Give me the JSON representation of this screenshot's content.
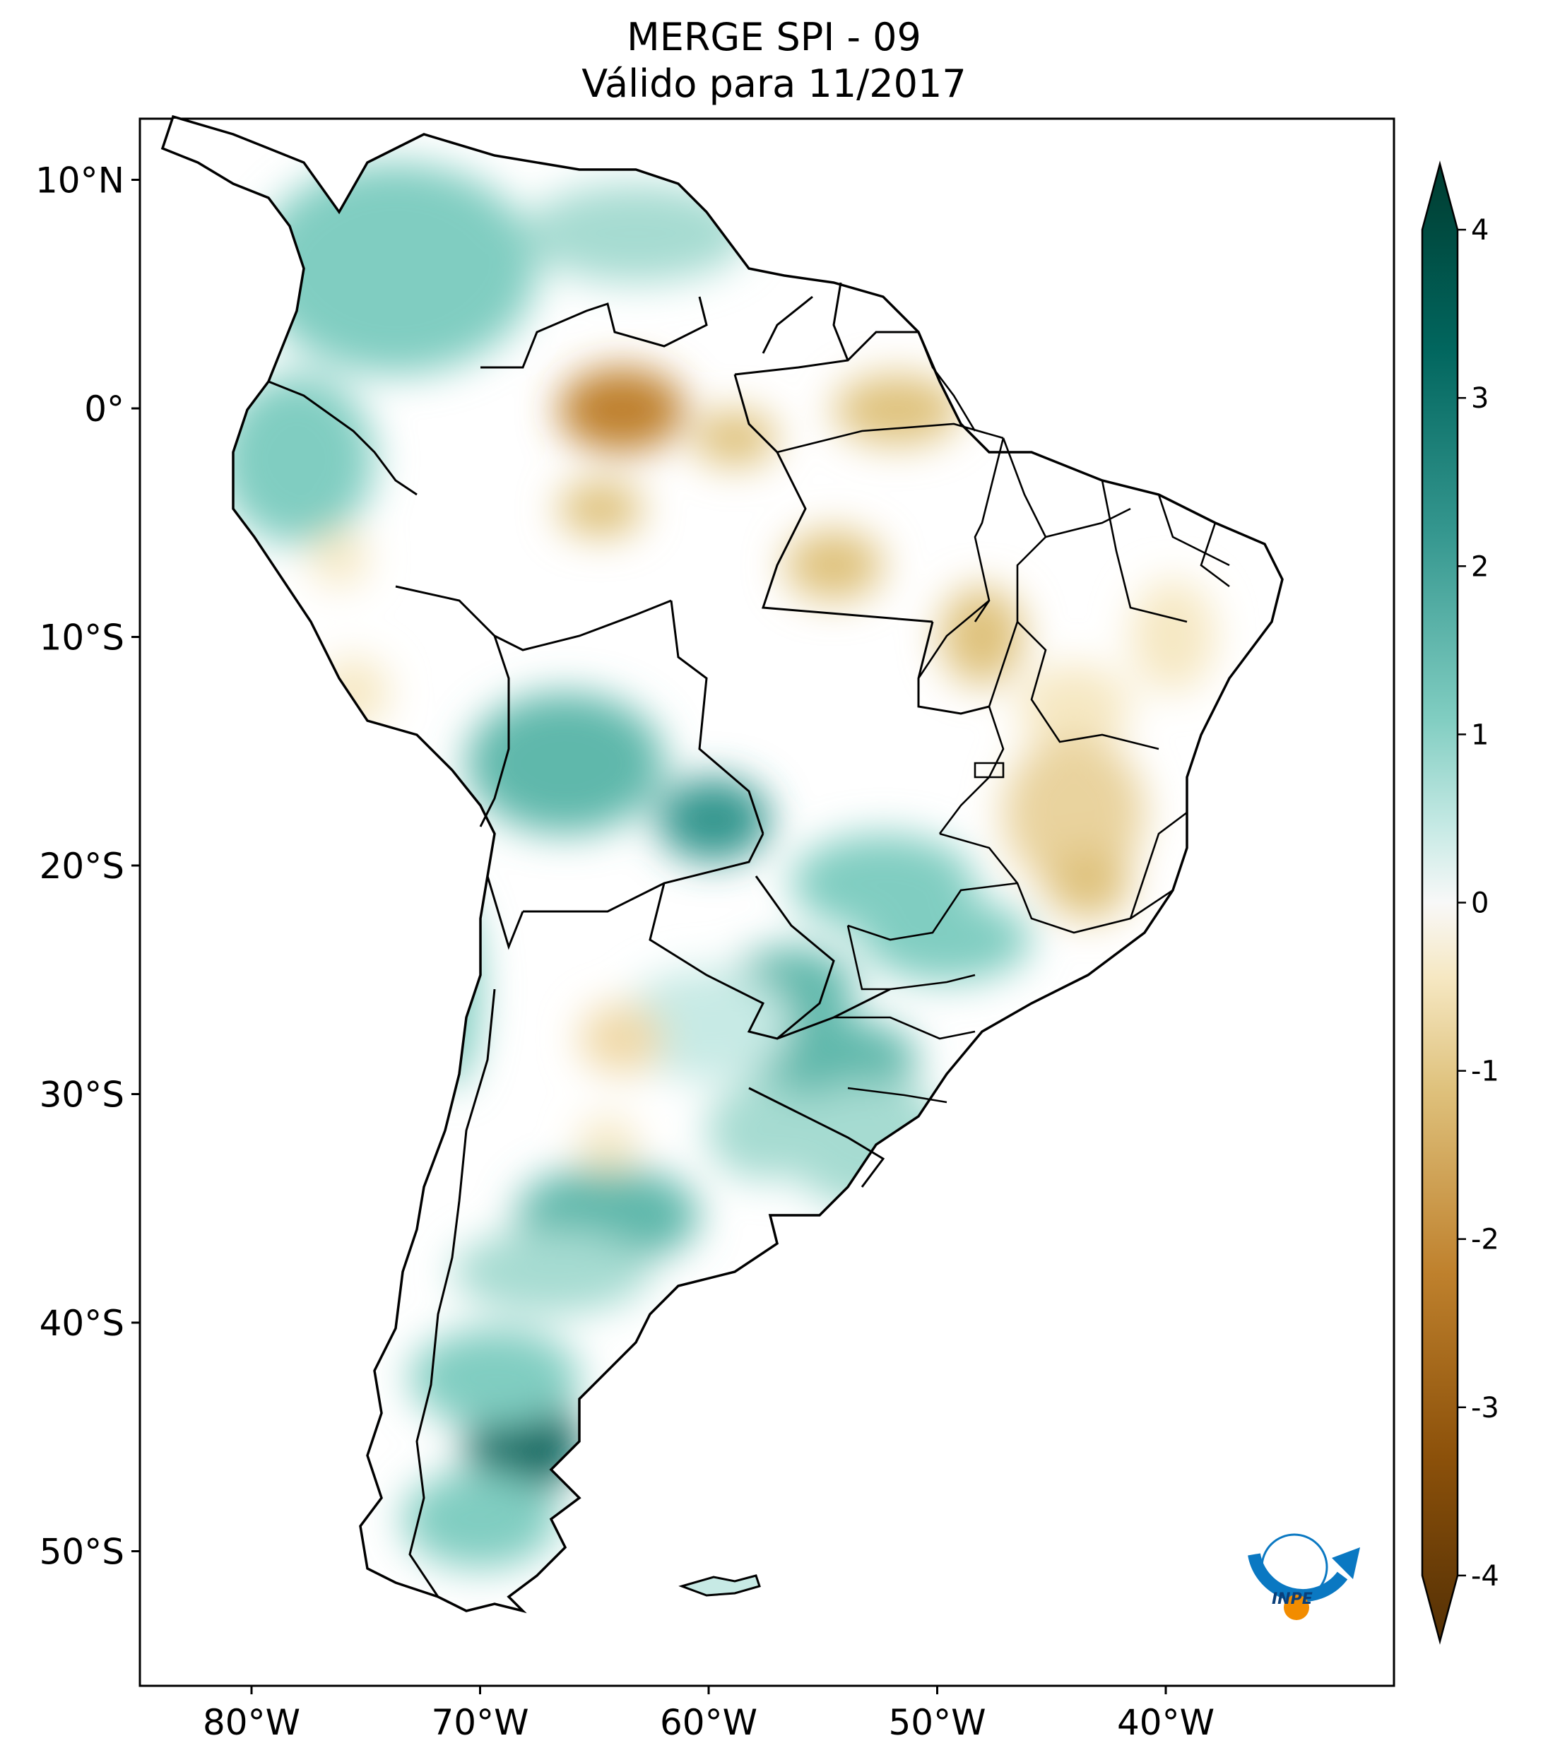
{
  "title": {
    "line1": "MERGE   SPI - 09",
    "line2": "Válido para 11/2017"
  },
  "axes": {
    "lat_labels": [
      "10°N",
      "0°",
      "10°S",
      "20°S",
      "30°S",
      "40°S",
      "50°S"
    ],
    "lon_labels": [
      "80°W",
      "70°W",
      "60°W",
      "50°W",
      "40°W"
    ],
    "lat_values": [
      10,
      0,
      -10,
      -20,
      -30,
      -40,
      -50
    ],
    "lon_values": [
      -80,
      -70,
      -60,
      -50,
      -40
    ]
  },
  "colorbar": {
    "ticks": [
      "4",
      "3",
      "2",
      "1",
      "0",
      "-1",
      "-2",
      "-3",
      "-4"
    ],
    "tick_values": [
      4,
      3,
      2,
      1,
      0,
      -1,
      -2,
      -3,
      -4
    ],
    "colors": {
      "max": "#003c30",
      "high": "#01665e",
      "mid_high": "#35978f",
      "low_high": "#80cdc1",
      "light": "#c7eae5",
      "zero": "#f5f5f5",
      "light_neg": "#f6e8c3",
      "low_neg": "#dfc27d",
      "mid_neg": "#bf812d",
      "high_neg": "#8c510a",
      "min": "#543005"
    }
  },
  "logo": {
    "text": "INPE"
  }
}
